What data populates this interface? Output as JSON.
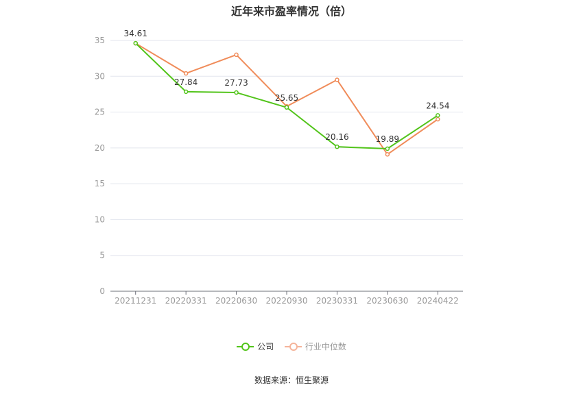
{
  "chart_data": {
    "type": "line",
    "title": "近年来市盈率情况（倍）",
    "categories": [
      "20211231",
      "20220331",
      "20220630",
      "20220930",
      "20230331",
      "20230630",
      "20240422"
    ],
    "series": [
      {
        "name": "公司",
        "color": "#52c41a",
        "values": [
          34.61,
          27.84,
          27.73,
          25.65,
          20.16,
          19.89,
          24.54
        ],
        "labels": [
          "34.61",
          "27.84",
          "27.73",
          "25.65",
          "20.16",
          "19.89",
          "24.54"
        ]
      },
      {
        "name": "行业中位数",
        "color": "#f08c5a",
        "values": [
          34.6,
          30.4,
          33.0,
          25.8,
          29.5,
          19.1,
          24.0
        ]
      }
    ],
    "yticks": [
      "0",
      "5",
      "10",
      "15",
      "20",
      "25",
      "30",
      "35"
    ],
    "ylim": [
      0,
      35
    ],
    "grid": true,
    "legend_position": "bottom",
    "source": "数据来源：恒生聚源"
  }
}
